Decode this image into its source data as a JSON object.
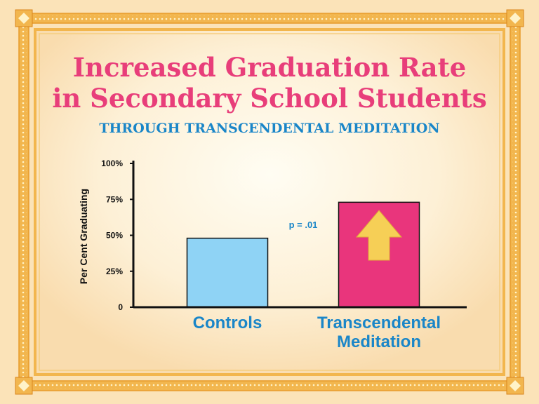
{
  "title_line1": "Increased Graduation Rate",
  "title_line2": "in Secondary School Students",
  "subtitle": "THROUGH TRANSCENDENTAL MEDITATION",
  "colors": {
    "background": "#fbe3b8",
    "border": "#f2b64e",
    "title": "#e83e7a",
    "subtitle": "#1a86c8",
    "controls_bar": "#8fd3f5",
    "tm_bar": "#e9357c",
    "arrow": "#f6cf56"
  },
  "chart_data": {
    "type": "bar",
    "categories": [
      "Controls",
      "Transcendental Meditation"
    ],
    "category_lines": [
      [
        "Controls"
      ],
      [
        "Transcendental",
        "Meditation"
      ]
    ],
    "values": [
      48,
      73
    ],
    "ylabel": "Per Cent Graduating",
    "ylim": [
      0,
      100
    ],
    "yticks": [
      0,
      25,
      50,
      75,
      100
    ],
    "ytick_labels": [
      "0",
      "25%",
      "50%",
      "75%",
      "100%"
    ],
    "annotation": "p = .01",
    "grid": false
  }
}
